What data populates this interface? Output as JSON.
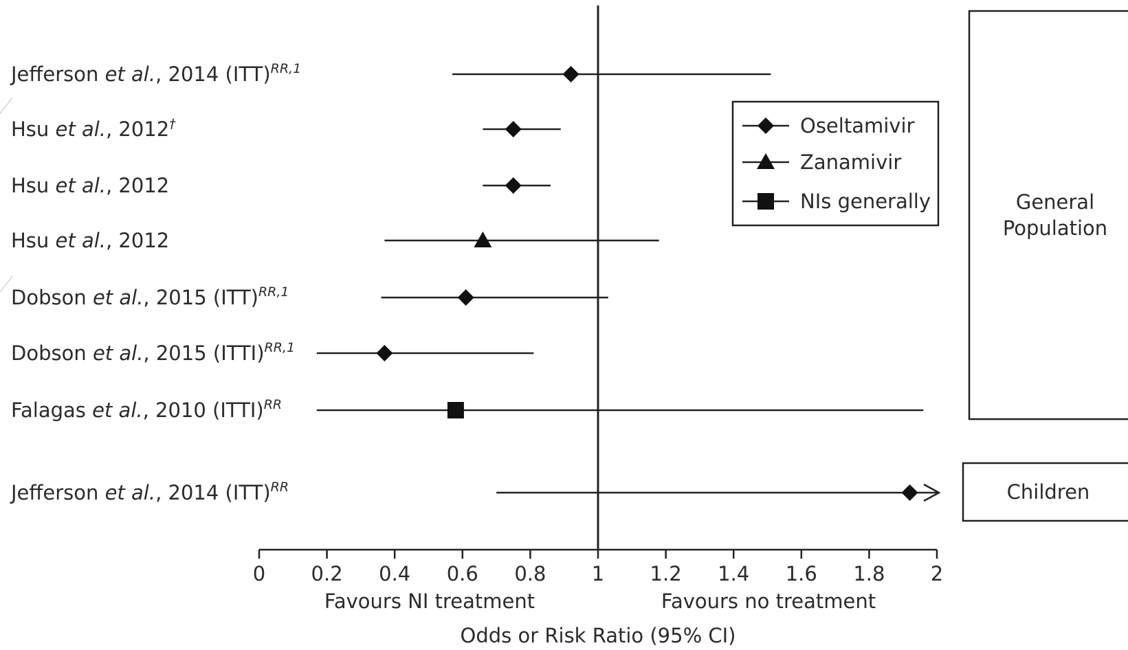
{
  "chart_data": {
    "type": "forest",
    "xlabel": "Odds or Risk Ratio (95% CI)",
    "xlim": [
      0,
      2
    ],
    "xticks": [
      0,
      0.2,
      0.4,
      0.6,
      0.8,
      1,
      1.2,
      1.4,
      1.6,
      1.8,
      2
    ],
    "tick_labels": [
      "0",
      "0.2",
      "0.4",
      "0.6",
      "0.8",
      "1",
      "1.2",
      "1.4",
      "1.6",
      "1.8",
      "2"
    ],
    "reference_line": 1,
    "favours_left": "Favours NI treatment",
    "favours_right": "Favours no treatment",
    "legend": [
      {
        "name": "Oseltamivir",
        "marker": "diamond"
      },
      {
        "name": "Zanamivir",
        "marker": "triangle"
      },
      {
        "name": "NIs generally",
        "marker": "square"
      }
    ],
    "legend_position": "top-right",
    "studies": [
      {
        "author": "Jefferson",
        "etal": "et al.",
        "rest": ", 2014 (ITT)",
        "sup": "RR,1",
        "estimate": 0.92,
        "lower": 0.57,
        "upper": 1.51,
        "marker": "diamond",
        "group": "General Population",
        "arrow": false
      },
      {
        "author": "Hsu",
        "etal": "et al.",
        "rest": ", 2012",
        "sup": "†",
        "estimate": 0.75,
        "lower": 0.66,
        "upper": 0.89,
        "marker": "diamond",
        "group": "General Population",
        "arrow": false
      },
      {
        "author": "Hsu",
        "etal": "et al.",
        "rest": ", 2012",
        "sup": "",
        "estimate": 0.75,
        "lower": 0.66,
        "upper": 0.86,
        "marker": "diamond",
        "group": "General Population",
        "arrow": false
      },
      {
        "author": "Hsu",
        "etal": "et al.",
        "rest": ", 2012",
        "sup": "",
        "estimate": 0.66,
        "lower": 0.37,
        "upper": 1.18,
        "marker": "triangle",
        "group": "General Population",
        "arrow": false
      },
      {
        "author": "Dobson",
        "etal": "et al.",
        "rest": ", 2015 (ITT)",
        "sup": "RR,1",
        "estimate": 0.61,
        "lower": 0.36,
        "upper": 1.03,
        "marker": "diamond",
        "group": "General Population",
        "arrow": false
      },
      {
        "author": "Dobson",
        "etal": "et al.",
        "rest": ", 2015 (ITTI)",
        "sup": "RR,1",
        "estimate": 0.37,
        "lower": 0.17,
        "upper": 0.81,
        "marker": "diamond",
        "group": "General Population",
        "arrow": false
      },
      {
        "author": "Falagas",
        "etal": "et al.",
        "rest": ", 2010 (ITTI)",
        "sup": "RR",
        "estimate": 0.58,
        "lower": 0.17,
        "upper": 1.96,
        "marker": "square",
        "group": "General Population",
        "arrow": false
      },
      {
        "author": "Jefferson",
        "etal": "et al.",
        "rest": ", 2014 (ITT)",
        "sup": "RR",
        "estimate": 1.92,
        "lower": 0.7,
        "upper": 2.0,
        "marker": "diamond",
        "group": "Children",
        "arrow": true
      }
    ],
    "groups": [
      {
        "lines": [
          "General",
          "Population"
        ]
      },
      {
        "lines": [
          "Children"
        ]
      }
    ]
  }
}
